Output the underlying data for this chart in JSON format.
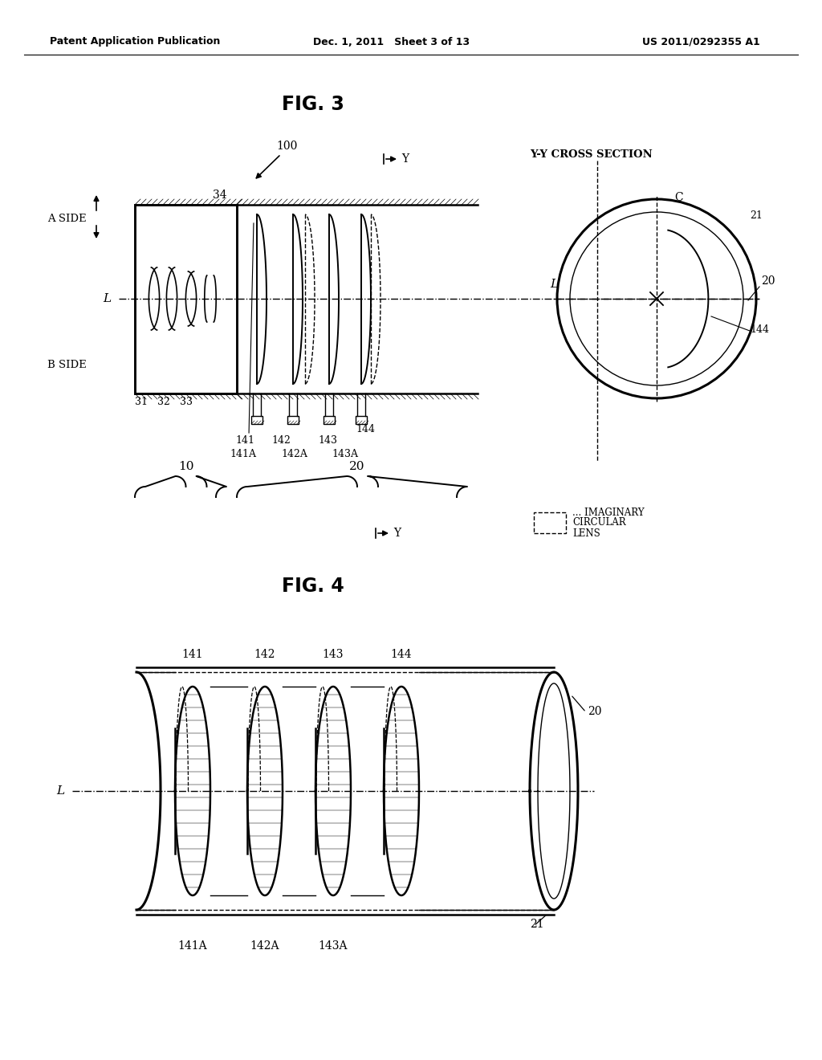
{
  "bg_color": "#ffffff",
  "text_color": "#000000",
  "header_left": "Patent Application Publication",
  "header_center": "Dec. 1, 2011   Sheet 3 of 13",
  "header_right": "US 2011/0292355 A1",
  "fig3_title": "FIG. 3",
  "fig4_title": "FIG. 4",
  "lw_main": 1.8,
  "lw_thin": 1.0,
  "font_main": 10,
  "font_title": 17,
  "fig3_label_100": "100",
  "fig3_label_34": "34",
  "fig3_label_aside": "A SIDE",
  "fig3_label_bside": "B SIDE",
  "fig3_label_L": "L",
  "fig3_label_YY": "Y-Y CROSS SECTION",
  "fig3_label_Y": "Y",
  "fig3_labels_bottom": [
    "31",
    "32",
    "33"
  ],
  "fig3_lens_labels_top": [
    "141",
    "142",
    "143",
    "144"
  ],
  "fig3_lens_labels_bot": [
    "141A",
    "142 142A",
    "143",
    "143A"
  ],
  "fig3_label_20": "20",
  "fig3_label_21": "21",
  "fig3_label_C": "C",
  "fig3_label_144": "144",
  "fig3_label_10": "10",
  "fig3_label_20b": "20",
  "legend_text": [
    "... IMAGINARY",
    "CIRCULAR",
    "LENS"
  ],
  "fig4_label_L": "L",
  "fig4_label_20": "20",
  "fig4_label_21": "21",
  "fig4_lens_labels": [
    "141",
    "142",
    "143",
    "144"
  ],
  "fig4_bot_labels": [
    "141A",
    "142A",
    "143A"
  ]
}
